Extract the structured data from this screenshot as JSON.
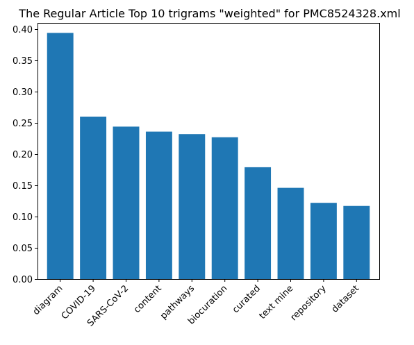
{
  "chart_data": {
    "type": "bar",
    "title": "The Regular Article Top 10 trigrams \"weighted\"  for PMC8524328.xml",
    "xlabel": "",
    "ylabel": "",
    "categories": [
      "diagram",
      "COVID-19",
      "SARS-CoV-2",
      "content",
      "pathways",
      "biocuration",
      "curated",
      "text mine",
      "repository",
      "dataset"
    ],
    "values": [
      0.394,
      0.26,
      0.244,
      0.236,
      0.232,
      0.227,
      0.179,
      0.146,
      0.122,
      0.117
    ],
    "ylim": [
      0,
      0.41
    ],
    "yticks": [
      "0.00",
      "0.05",
      "0.10",
      "0.15",
      "0.20",
      "0.25",
      "0.30",
      "0.35",
      "0.40"
    ],
    "grid": false,
    "bar_color": "#1f77b4",
    "xtick_rotation_deg": 45
  }
}
